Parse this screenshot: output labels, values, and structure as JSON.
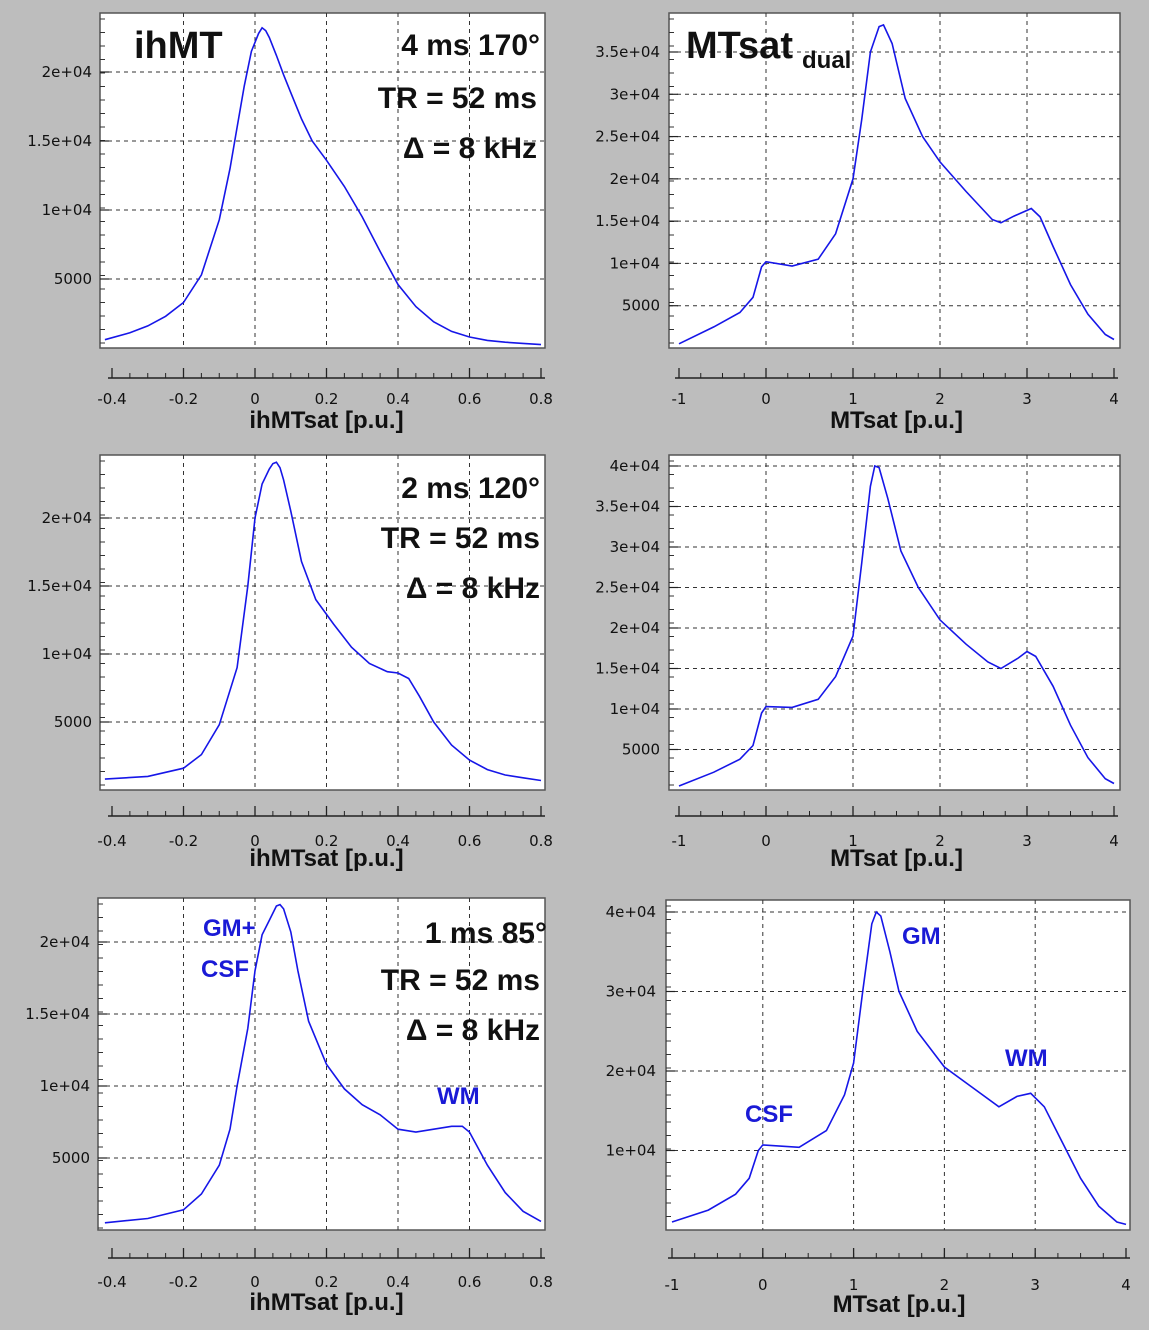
{
  "chart_data": [
    {
      "type": "line",
      "panel": "ihMT-top",
      "title": "ihMT",
      "annotations": [
        "4 ms   170°",
        "TR = 52 ms",
        "Δ = 8 kHz"
      ],
      "xlabel": "ihMTsat  [p.u.]",
      "xlim": [
        -0.42,
        0.8
      ],
      "ylim": [
        0,
        23500
      ],
      "xticks": [
        "-0.4",
        "-0.2",
        "0",
        "0.2",
        "0.4",
        "0.6",
        "0.8"
      ],
      "yticks": [
        "5000",
        "1e+04",
        "1.5e+04",
        "2e+04"
      ],
      "series": [
        {
          "name": "histogram",
          "x": [
            -0.42,
            -0.35,
            -0.3,
            -0.25,
            -0.2,
            -0.15,
            -0.1,
            -0.07,
            -0.05,
            -0.03,
            -0.01,
            0.01,
            0.02,
            0.03,
            0.04,
            0.06,
            0.08,
            0.1,
            0.13,
            0.16,
            0.2,
            0.25,
            0.3,
            0.35,
            0.4,
            0.45,
            0.5,
            0.55,
            0.6,
            0.65,
            0.7,
            0.75,
            0.8
          ],
          "y": [
            600,
            1100,
            1600,
            2300,
            3300,
            5300,
            9300,
            13000,
            16000,
            19000,
            21500,
            22800,
            23200,
            23000,
            22500,
            21200,
            19800,
            18500,
            16600,
            15000,
            13600,
            11700,
            9500,
            7000,
            4600,
            3000,
            1900,
            1200,
            800,
            550,
            420,
            330,
            250
          ]
        }
      ]
    },
    {
      "type": "line",
      "panel": "MTsat-top",
      "title": "MTsat",
      "title_sub": "dual",
      "xlabel": "MTsat  [p.u.]",
      "xlim": [
        -1,
        4
      ],
      "ylim": [
        0,
        38500
      ],
      "xticks": [
        "-1",
        "0",
        "1",
        "2",
        "3",
        "4"
      ],
      "yticks": [
        "5000",
        "1e+04",
        "1.5e+04",
        "2e+04",
        "2.5e+04",
        "3e+04",
        "3.5e+04"
      ],
      "series": [
        {
          "name": "histogram",
          "x": [
            -1,
            -0.6,
            -0.3,
            -0.15,
            -0.05,
            0,
            0.3,
            0.6,
            0.8,
            1,
            1.1,
            1.2,
            1.3,
            1.35,
            1.45,
            1.6,
            1.8,
            2,
            2.3,
            2.6,
            2.7,
            2.85,
            3.05,
            3.15,
            3.3,
            3.5,
            3.7,
            3.9,
            4
          ],
          "y": [
            500,
            2500,
            4200,
            6000,
            9600,
            10200,
            9700,
            10500,
            13500,
            20000,
            27000,
            35000,
            38000,
            38200,
            36000,
            29500,
            25000,
            22000,
            18500,
            15200,
            14800,
            15600,
            16500,
            15500,
            12000,
            7500,
            4000,
            1600,
            1000
          ]
        }
      ]
    },
    {
      "type": "line",
      "panel": "ihMT-middle",
      "annotations": [
        "2 ms   120°",
        "TR = 52 ms",
        "Δ = 8 kHz"
      ],
      "xlabel": "ihMTsat  [p.u.]",
      "xlim": [
        -0.42,
        0.8
      ],
      "ylim": [
        0,
        24000
      ],
      "xticks": [
        "-0.4",
        "-0.2",
        "0",
        "0.2",
        "0.4",
        "0.6",
        "0.8"
      ],
      "yticks": [
        "5000",
        "1e+04",
        "1.5e+04",
        "2e+04"
      ],
      "series": [
        {
          "name": "histogram",
          "x": [
            -0.42,
            -0.3,
            -0.2,
            -0.15,
            -0.1,
            -0.05,
            -0.02,
            0,
            0.02,
            0.04,
            0.05,
            0.06,
            0.07,
            0.08,
            0.1,
            0.13,
            0.17,
            0.22,
            0.27,
            0.32,
            0.37,
            0.4,
            0.43,
            0.46,
            0.5,
            0.55,
            0.6,
            0.65,
            0.7,
            0.75,
            0.8
          ],
          "y": [
            800,
            1000,
            1600,
            2600,
            4800,
            9000,
            15000,
            20000,
            22500,
            23600,
            24000,
            24100,
            23700,
            22800,
            20500,
            16800,
            14000,
            12200,
            10500,
            9300,
            8700,
            8600,
            8200,
            6900,
            5000,
            3300,
            2200,
            1500,
            1100,
            900,
            700
          ]
        }
      ]
    },
    {
      "type": "line",
      "panel": "MTsat-middle",
      "xlabel": "MTsat  [p.u.]",
      "xlim": [
        -1,
        4
      ],
      "ylim": [
        0,
        40000
      ],
      "xticks": [
        "-1",
        "0",
        "1",
        "2",
        "3",
        "4"
      ],
      "yticks": [
        "5000",
        "1e+04",
        "1.5e+04",
        "2e+04",
        "2.5e+04",
        "3e+04",
        "3.5e+04",
        "4e+04"
      ],
      "series": [
        {
          "name": "histogram",
          "x": [
            -1,
            -0.6,
            -0.3,
            -0.15,
            -0.05,
            0,
            0.3,
            0.6,
            0.8,
            1,
            1.1,
            1.2,
            1.25,
            1.3,
            1.4,
            1.55,
            1.75,
            2,
            2.3,
            2.55,
            2.7,
            2.9,
            3,
            3.1,
            3.3,
            3.5,
            3.7,
            3.9,
            4
          ],
          "y": [
            500,
            2200,
            3800,
            5500,
            9500,
            10300,
            10200,
            11200,
            14000,
            19000,
            28000,
            37500,
            40000,
            39800,
            36000,
            29500,
            25000,
            21000,
            18000,
            15800,
            15000,
            16300,
            17100,
            16500,
            12800,
            8000,
            4000,
            1400,
            800
          ]
        }
      ]
    },
    {
      "type": "line",
      "panel": "ihMT-bottom",
      "annotations": [
        "1 ms   85°",
        "TR = 52 ms",
        "Δ = 8 kHz",
        "GM+",
        "CSF",
        "WM"
      ],
      "xlabel": "ihMTsat  [p.u.]",
      "xlim": [
        -0.42,
        0.8
      ],
      "ylim": [
        0,
        23000
      ],
      "xticks": [
        "-0.4",
        "-0.2",
        "0",
        "0.2",
        "0.4",
        "0.6",
        "0.8"
      ],
      "yticks": [
        "5000",
        "1e+04",
        "1.5e+04",
        "2e+04"
      ],
      "series": [
        {
          "name": "histogram",
          "x": [
            -0.42,
            -0.3,
            -0.2,
            -0.15,
            -0.1,
            -0.07,
            -0.05,
            -0.02,
            0,
            0.02,
            0.04,
            0.06,
            0.07,
            0.08,
            0.1,
            0.12,
            0.15,
            0.2,
            0.25,
            0.3,
            0.35,
            0.4,
            0.45,
            0.5,
            0.55,
            0.58,
            0.6,
            0.65,
            0.7,
            0.75,
            0.8
          ],
          "y": [
            500,
            800,
            1400,
            2500,
            4500,
            7000,
            10000,
            14000,
            18000,
            20500,
            21500,
            22500,
            22600,
            22300,
            20700,
            18000,
            14500,
            11500,
            9800,
            8700,
            8000,
            7000,
            6800,
            7000,
            7200,
            7200,
            6800,
            4500,
            2600,
            1300,
            600
          ]
        }
      ]
    },
    {
      "type": "line",
      "panel": "MTsat-bottom",
      "annotations": [
        "GM",
        "WM",
        "CSF"
      ],
      "xlabel": "MTsat  [p.u.]",
      "xlim": [
        -1,
        4
      ],
      "ylim": [
        0,
        40000
      ],
      "xticks": [
        "-1",
        "0",
        "1",
        "2",
        "3",
        "4"
      ],
      "yticks": [
        "1e+04",
        "2e+04",
        "3e+04",
        "4e+04"
      ],
      "series": [
        {
          "name": "histogram",
          "x": [
            -1,
            -0.6,
            -0.3,
            -0.15,
            -0.05,
            0,
            0.4,
            0.7,
            0.9,
            1,
            1.1,
            1.2,
            1.25,
            1.3,
            1.4,
            1.5,
            1.7,
            2,
            2.3,
            2.6,
            2.8,
            2.95,
            3.1,
            3.3,
            3.5,
            3.7,
            3.9,
            4
          ],
          "y": [
            1000,
            2500,
            4500,
            6500,
            10000,
            10700,
            10400,
            12500,
            17000,
            21000,
            30000,
            38500,
            40000,
            39500,
            35000,
            30000,
            25000,
            20500,
            18000,
            15500,
            16800,
            17200,
            15500,
            11000,
            6500,
            3000,
            1000,
            700
          ]
        }
      ]
    }
  ]
}
